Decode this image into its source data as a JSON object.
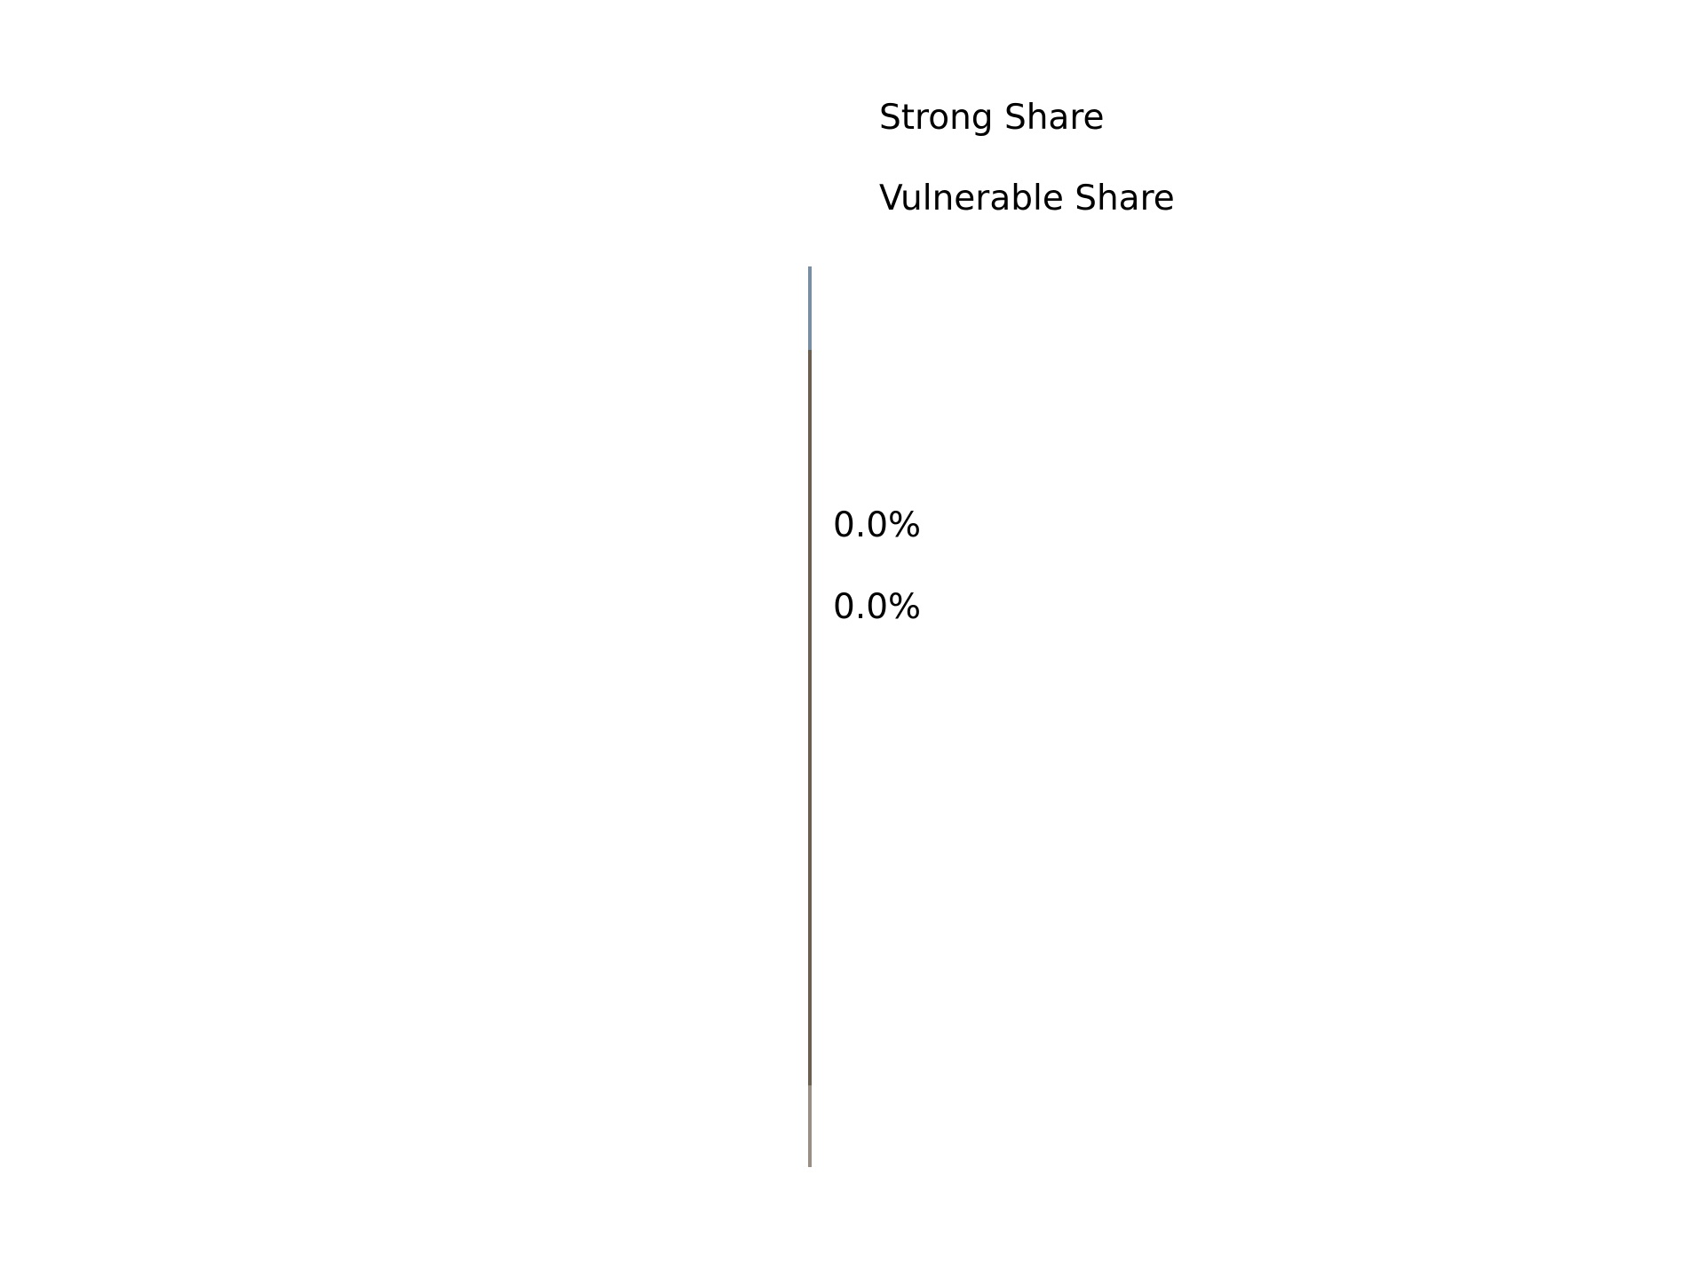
{
  "chart_data": {
    "type": "bar",
    "orientation": "vertical",
    "title": "",
    "xlabel": "",
    "ylabel": "",
    "grid": false,
    "legend_position": "top",
    "series": [
      {
        "name": "Strong Share",
        "values": [
          0.0
        ],
        "color": "#7a8ea3"
      },
      {
        "name": "Vulnerable Share",
        "values": [
          0.0
        ],
        "color": "#6b5f52"
      }
    ],
    "data_labels": [
      "0.0%",
      "0.0%"
    ],
    "colors": {
      "strong": "#7a8ea3",
      "vulnerable": "#6b5f52",
      "base": "#9a8f85",
      "text": "#000000"
    }
  }
}
